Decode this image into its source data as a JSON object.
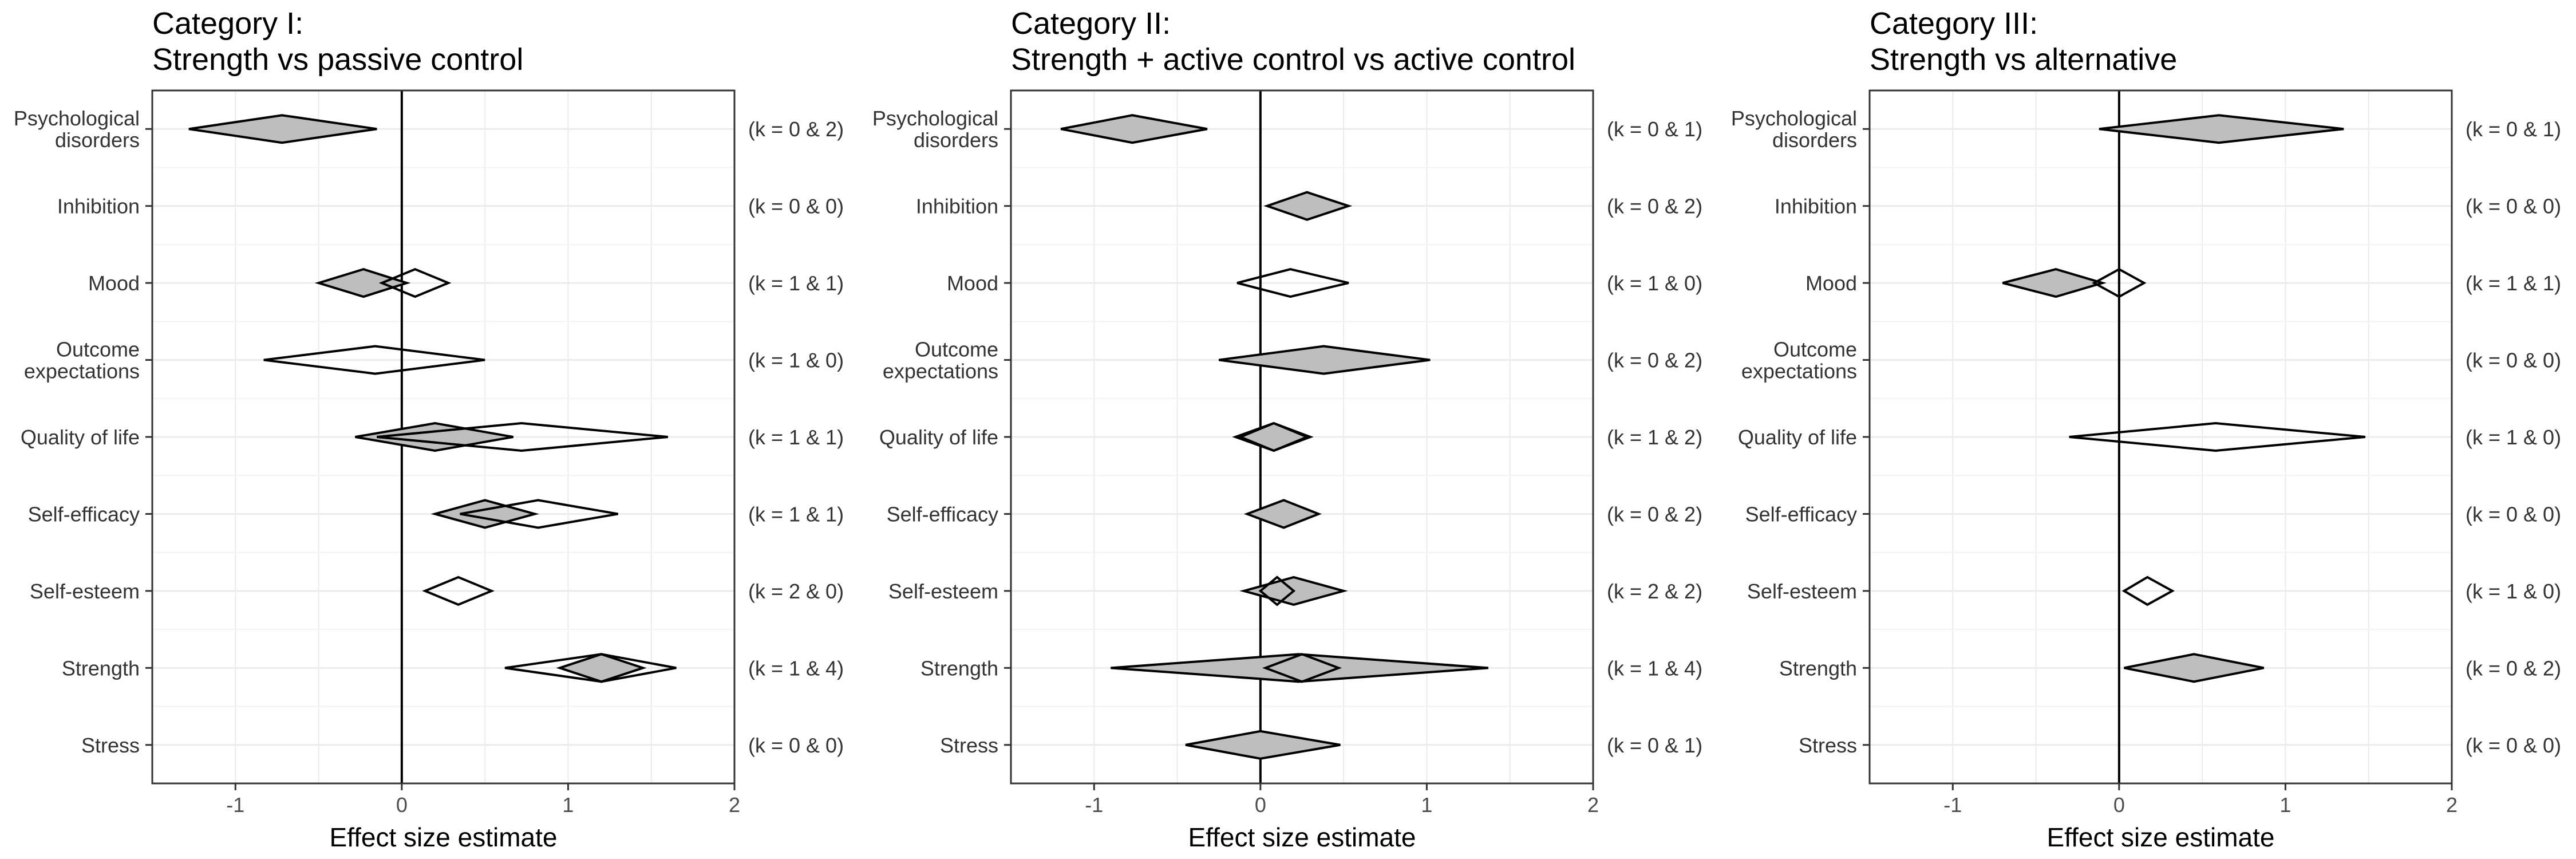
{
  "chart_data": [
    {
      "type": "forest",
      "title_line1": "Category I:",
      "title_line2": "Strength vs passive control",
      "xlabel": "Effect size estimate",
      "xlim": [
        -1.5,
        2.0
      ],
      "xticks": [
        -1,
        0,
        1,
        2
      ],
      "grid": true,
      "categories": [
        "Psychological\ndisorders",
        "Inhibition",
        "Mood",
        "Outcome\nexpectations",
        "Quality of life",
        "Self-efficacy",
        "Self-esteem",
        "Strength",
        "Stress"
      ],
      "k_labels": [
        "(k = 0 & 2)",
        "(k = 0 & 0)",
        "(k = 1 & 1)",
        "(k = 1 & 0)",
        "(k = 1 & 1)",
        "(k = 1 & 1)",
        "(k = 2 & 0)",
        "(k = 1 & 4)",
        "(k = 0 & 0)"
      ],
      "series": [
        {
          "fill": "#bebebe",
          "points": [
            {
              "cat": 0,
              "est": -0.72,
              "lo": -1.28,
              "hi": -0.15
            },
            {
              "cat": 2,
              "est": -0.23,
              "lo": -0.5,
              "hi": 0.03
            },
            {
              "cat": 4,
              "est": 0.2,
              "lo": -0.28,
              "hi": 0.67
            },
            {
              "cat": 5,
              "est": 0.5,
              "lo": 0.2,
              "hi": 0.8
            },
            {
              "cat": 7,
              "est": 1.2,
              "lo": 0.95,
              "hi": 1.45
            }
          ]
        },
        {
          "fill": "#ffffff",
          "points": [
            {
              "cat": 2,
              "est": 0.08,
              "lo": -0.12,
              "hi": 0.28
            },
            {
              "cat": 3,
              "est": -0.16,
              "lo": -0.83,
              "hi": 0.5
            },
            {
              "cat": 4,
              "est": 0.72,
              "lo": -0.15,
              "hi": 1.6
            },
            {
              "cat": 5,
              "est": 0.82,
              "lo": 0.35,
              "hi": 1.3
            },
            {
              "cat": 6,
              "est": 0.34,
              "lo": 0.14,
              "hi": 0.54
            },
            {
              "cat": 7,
              "est": 1.2,
              "lo": 0.62,
              "hi": 1.65
            }
          ]
        }
      ]
    },
    {
      "type": "forest",
      "title_line1": "Category II:",
      "title_line2": "Strength + active control vs active control",
      "xlabel": "Effect size estimate",
      "xlim": [
        -1.5,
        2.0
      ],
      "xticks": [
        -1,
        0,
        1,
        2
      ],
      "grid": true,
      "categories": [
        "Psychological\ndisorders",
        "Inhibition",
        "Mood",
        "Outcome\nexpectations",
        "Quality of life",
        "Self-efficacy",
        "Self-esteem",
        "Strength",
        "Stress"
      ],
      "k_labels": [
        "(k = 0 & 1)",
        "(k = 0 & 2)",
        "(k = 1 & 0)",
        "(k = 0 & 2)",
        "(k = 1 & 2)",
        "(k = 0 & 2)",
        "(k = 2 & 2)",
        "(k = 1 & 4)",
        "(k = 0 & 1)"
      ],
      "series": [
        {
          "fill": "#bebebe",
          "points": [
            {
              "cat": 0,
              "est": -0.77,
              "lo": -1.2,
              "hi": -0.32
            },
            {
              "cat": 1,
              "est": 0.28,
              "lo": 0.04,
              "hi": 0.53
            },
            {
              "cat": 3,
              "est": 0.38,
              "lo": -0.25,
              "hi": 1.02
            },
            {
              "cat": 4,
              "est": 0.08,
              "lo": -0.15,
              "hi": 0.3
            },
            {
              "cat": 5,
              "est": 0.14,
              "lo": -0.08,
              "hi": 0.35
            },
            {
              "cat": 6,
              "est": 0.2,
              "lo": -0.1,
              "hi": 0.5
            },
            {
              "cat": 7,
              "est": 0.23,
              "lo": -0.9,
              "hi": 1.37
            },
            {
              "cat": 8,
              "est": 0.0,
              "lo": -0.45,
              "hi": 0.48
            }
          ]
        },
        {
          "fill": "#ffffff",
          "points": [
            {
              "cat": 2,
              "est": 0.18,
              "lo": -0.14,
              "hi": 0.53
            },
            {
              "cat": 4,
              "est": 0.08,
              "lo": -0.12,
              "hi": 0.28
            },
            {
              "cat": 6,
              "est": 0.1,
              "lo": 0.0,
              "hi": 0.2
            },
            {
              "cat": 7,
              "est": 0.25,
              "lo": 0.03,
              "hi": 0.47
            }
          ]
        }
      ]
    },
    {
      "type": "forest",
      "title_line1": "Category III:",
      "title_line2": "Strength vs alternative",
      "xlabel": "Effect size estimate",
      "xlim": [
        -1.5,
        2.0
      ],
      "xticks": [
        -1,
        0,
        1,
        2
      ],
      "grid": true,
      "categories": [
        "Psychological\ndisorders",
        "Inhibition",
        "Mood",
        "Outcome\nexpectations",
        "Quality of life",
        "Self-efficacy",
        "Self-esteem",
        "Strength",
        "Stress"
      ],
      "k_labels": [
        "(k = 0 & 1)",
        "(k = 0 & 0)",
        "(k = 1 & 1)",
        "(k = 0 & 0)",
        "(k = 1 & 0)",
        "(k = 0 & 0)",
        "(k = 1 & 0)",
        "(k = 0 & 2)",
        "(k = 0 & 0)"
      ],
      "series": [
        {
          "fill": "#bebebe",
          "points": [
            {
              "cat": 0,
              "est": 0.6,
              "lo": -0.12,
              "hi": 1.35
            },
            {
              "cat": 2,
              "est": -0.38,
              "lo": -0.7,
              "hi": -0.1
            },
            {
              "cat": 7,
              "est": 0.45,
              "lo": 0.03,
              "hi": 0.87
            }
          ]
        },
        {
          "fill": "#ffffff",
          "points": [
            {
              "cat": 2,
              "est": 0.0,
              "lo": -0.15,
              "hi": 0.15
            },
            {
              "cat": 4,
              "est": 0.58,
              "lo": -0.3,
              "hi": 1.48
            },
            {
              "cat": 6,
              "est": 0.17,
              "lo": 0.03,
              "hi": 0.32
            }
          ]
        }
      ]
    }
  ]
}
